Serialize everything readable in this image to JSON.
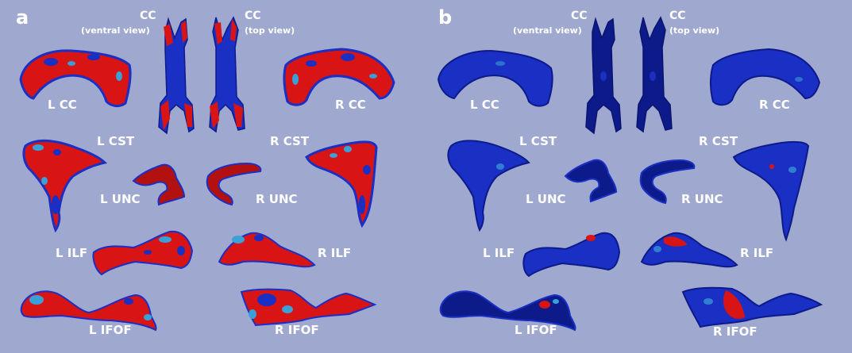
{
  "panels": [
    {
      "letter": "a",
      "cc_ventral": {
        "title": "CC",
        "subtitle": "(ventral view)"
      },
      "cc_top": {
        "title": "CC",
        "subtitle": "(top view)"
      },
      "labels": {
        "l_cc": "L CC",
        "r_cc": "R CC",
        "l_cst": "L CST",
        "r_cst": "R CST",
        "l_unc": "L UNC",
        "r_unc": "R UNC",
        "l_ilf": "L ILF",
        "r_ilf": "R ILF",
        "l_ifof": "L IFOF",
        "r_ifof": "R IFOF"
      }
    },
    {
      "letter": "b",
      "cc_ventral": {
        "title": "CC",
        "subtitle": "(ventral view)"
      },
      "cc_top": {
        "title": "CC",
        "subtitle": "(top view)"
      },
      "labels": {
        "l_cc": "L CC",
        "r_cc": "R CC",
        "l_cst": "L CST",
        "r_cst": "R CST",
        "l_unc": "L UNC",
        "r_unc": "R UNC",
        "l_ilf": "L ILF",
        "r_ilf": "R ILF",
        "l_ifof": "L IFOF",
        "r_ifof": "R IFOF"
      }
    }
  ],
  "colors": {
    "background": "#9fa8cf",
    "label_text": "#ffffff",
    "surface_blue": "#1a2fc4",
    "surface_dark_blue": "#0c1a8a",
    "surface_red": "#e01010",
    "surface_highlight": "#3aa0d8"
  }
}
